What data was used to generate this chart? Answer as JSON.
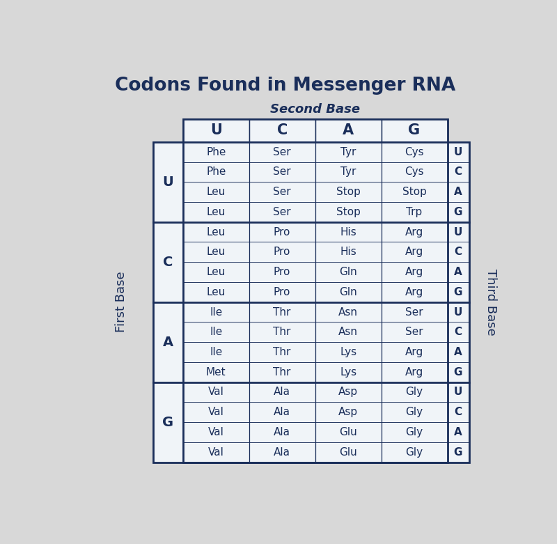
{
  "title": "Codons Found in Messenger RNA",
  "title_fontsize": 19,
  "second_base_label": "Second Base",
  "first_base_label": "First Base",
  "third_base_label": "Third Base",
  "second_base_headers": [
    "U",
    "C",
    "A",
    "G"
  ],
  "first_base_rows": [
    "U",
    "C",
    "A",
    "G"
  ],
  "third_base_labels": [
    "U",
    "C",
    "A",
    "G"
  ],
  "table_data": [
    [
      [
        "Phe",
        "Phe",
        "Leu",
        "Leu"
      ],
      [
        "Ser",
        "Ser",
        "Ser",
        "Ser"
      ],
      [
        "Tyr",
        "Tyr",
        "Stop",
        "Stop"
      ],
      [
        "Cys",
        "Cys",
        "Stop",
        "Trp"
      ]
    ],
    [
      [
        "Leu",
        "Leu",
        "Leu",
        "Leu"
      ],
      [
        "Pro",
        "Pro",
        "Pro",
        "Pro"
      ],
      [
        "His",
        "His",
        "Gln",
        "Gln"
      ],
      [
        "Arg",
        "Arg",
        "Arg",
        "Arg"
      ]
    ],
    [
      [
        "Ile",
        "Ile",
        "Ile",
        "Met"
      ],
      [
        "Thr",
        "Thr",
        "Thr",
        "Thr"
      ],
      [
        "Asn",
        "Asn",
        "Lys",
        "Lys"
      ],
      [
        "Ser",
        "Ser",
        "Arg",
        "Arg"
      ]
    ],
    [
      [
        "Val",
        "Val",
        "Val",
        "Val"
      ],
      [
        "Ala",
        "Ala",
        "Ala",
        "Ala"
      ],
      [
        "Asp",
        "Asp",
        "Glu",
        "Glu"
      ],
      [
        "Gly",
        "Gly",
        "Gly",
        "Gly"
      ]
    ]
  ],
  "text_color": "#1a2e5a",
  "bg_color": "#d8d8d8",
  "cell_bg": "#f0f4f8",
  "border_color": "#1a2e5a",
  "thick_lw": 2.0,
  "thin_lw": 0.9
}
